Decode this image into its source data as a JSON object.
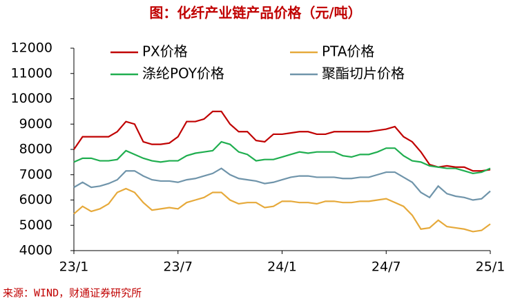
{
  "chart_data": {
    "type": "line",
    "title": "图：化纤产业链产品价格（元/吨）",
    "source": "来源：WIND，财通证券研究所",
    "categories": [
      "23/1",
      null,
      null,
      null,
      null,
      null,
      null,
      null,
      null,
      null,
      null,
      null,
      "23/7",
      null,
      null,
      null,
      null,
      null,
      null,
      null,
      null,
      null,
      null,
      null,
      "24/1",
      null,
      null,
      null,
      null,
      null,
      null,
      null,
      null,
      null,
      null,
      null,
      "24/7",
      null,
      null,
      null,
      null,
      null,
      null,
      null,
      null,
      null,
      null,
      null,
      "25/1"
    ],
    "ylim": [
      4000,
      12000
    ],
    "yticks": [
      4000,
      5000,
      6000,
      7000,
      8000,
      9000,
      10000,
      11000,
      12000
    ],
    "series": [
      {
        "name": "PX价格",
        "color": "#c00000",
        "values": [
          8000,
          8500,
          8500,
          8500,
          8500,
          8700,
          9100,
          9000,
          8300,
          8200,
          8200,
          8250,
          8500,
          9100,
          9100,
          9200,
          9500,
          9500,
          9000,
          8700,
          8700,
          8350,
          8300,
          8600,
          8600,
          8650,
          8700,
          8700,
          8600,
          8600,
          8700,
          8700,
          8700,
          8700,
          8700,
          8750,
          8800,
          8900,
          8500,
          8300,
          7900,
          7400,
          7300,
          7350,
          7300,
          7300,
          7150,
          7150,
          7200
        ]
      },
      {
        "name": "PTA价格",
        "color": "#e6a93a",
        "values": [
          5450,
          5750,
          5550,
          5650,
          5850,
          6300,
          6450,
          6300,
          5900,
          5600,
          5650,
          5700,
          5650,
          5900,
          6000,
          6100,
          6300,
          6300,
          6000,
          5850,
          5900,
          5900,
          5700,
          5750,
          5950,
          5950,
          5900,
          5900,
          5850,
          5950,
          5950,
          5900,
          5900,
          5950,
          5950,
          6000,
          6050,
          5900,
          5750,
          5400,
          4850,
          4900,
          5200,
          4950,
          4900,
          4850,
          4750,
          4800,
          5050
        ]
      },
      {
        "name": "涤纶POY价格",
        "color": "#1fae4f",
        "values": [
          7500,
          7650,
          7650,
          7550,
          7550,
          7600,
          7950,
          7800,
          7650,
          7550,
          7500,
          7550,
          7550,
          7750,
          7850,
          7900,
          7950,
          8300,
          8200,
          7900,
          7800,
          7550,
          7600,
          7600,
          7700,
          7800,
          7900,
          7850,
          7900,
          7900,
          7900,
          7750,
          7700,
          7800,
          7800,
          7900,
          8050,
          8050,
          7750,
          7550,
          7500,
          7350,
          7300,
          7250,
          7250,
          7150,
          7050,
          7100,
          7250
        ]
      },
      {
        "name": "聚酯切片价格",
        "color": "#6f94aa",
        "values": [
          6500,
          6700,
          6500,
          6550,
          6650,
          6800,
          7150,
          7150,
          6950,
          6800,
          6750,
          6750,
          6700,
          6800,
          6850,
          6950,
          7050,
          7250,
          7000,
          6850,
          6800,
          6750,
          6650,
          6700,
          6800,
          6900,
          6950,
          6950,
          6900,
          6900,
          6900,
          6850,
          6850,
          6900,
          6900,
          7000,
          7100,
          7100,
          6900,
          6700,
          6300,
          6100,
          6550,
          6250,
          6150,
          6100,
          6000,
          6050,
          6350
        ]
      }
    ]
  }
}
